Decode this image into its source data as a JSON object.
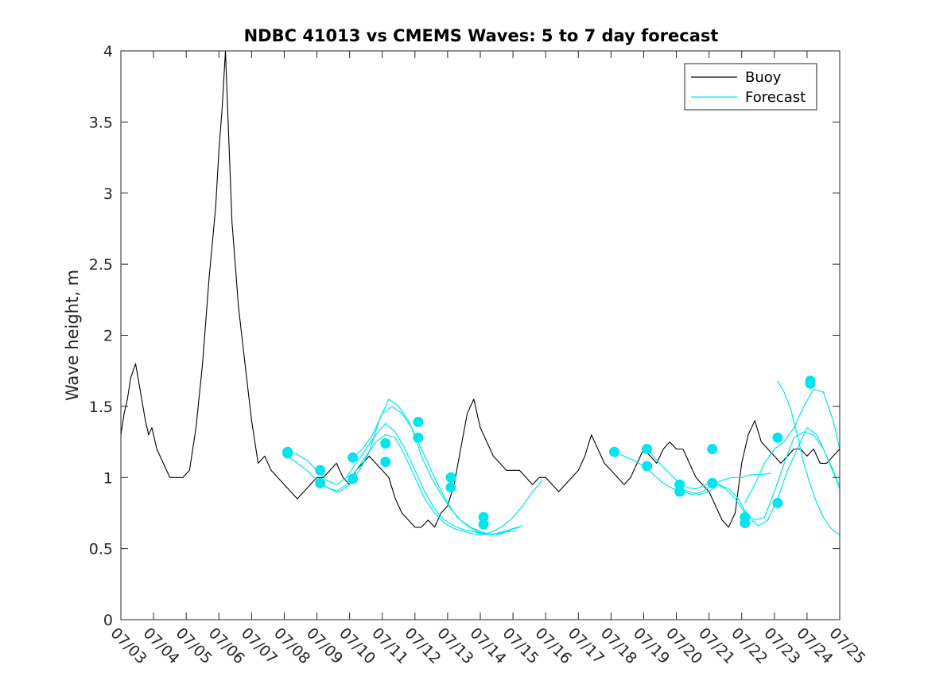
{
  "chart_data": {
    "type": "line",
    "title": "NDBC 41013 vs CMEMS Waves: 5 to 7 day forecast",
    "xlabel": "",
    "ylabel": "Wave height, m",
    "ylim": [
      0,
      4
    ],
    "yticks": [
      "0",
      "0.5",
      "1",
      "1.5",
      "2",
      "2.5",
      "3",
      "3.5",
      "4"
    ],
    "xlim": [
      "07/03",
      "07/25"
    ],
    "xticks": [
      "07/03",
      "07/04",
      "07/05",
      "07/06",
      "07/07",
      "07/08",
      "07/09",
      "07/10",
      "07/11",
      "07/12",
      "07/13",
      "07/14",
      "07/15",
      "07/16",
      "07/17",
      "07/18",
      "07/19",
      "07/20",
      "07/21",
      "07/22",
      "07/23",
      "07/24",
      "07/25"
    ],
    "grid": false,
    "legend": {
      "placement": "top-right",
      "entries": [
        "Buoy",
        "Forecast"
      ]
    },
    "colors": {
      "buoy": "#000000",
      "forecast": "#00e5ee",
      "axes": "#262626"
    },
    "series": [
      {
        "name": "Buoy",
        "x": [
          0.0,
          0.1,
          0.2,
          0.3,
          0.45,
          0.6,
          0.75,
          0.85,
          0.95,
          1.1,
          1.3,
          1.5,
          1.7,
          1.9,
          2.1,
          2.3,
          2.5,
          2.7,
          2.9,
          3.0,
          3.1,
          3.2,
          3.3,
          3.4,
          3.5,
          3.6,
          3.8,
          4.0,
          4.2,
          4.4,
          4.6,
          4.8,
          5.0,
          5.2,
          5.4,
          5.6,
          5.8,
          6.0,
          6.2,
          6.4,
          6.6,
          6.8,
          7.0,
          7.2,
          7.4,
          7.6,
          7.8,
          8.0,
          8.2,
          8.4,
          8.6,
          8.8,
          9.0,
          9.2,
          9.4,
          9.6,
          9.8,
          10.0,
          10.2,
          10.4,
          10.6,
          10.8,
          11.0,
          11.2,
          11.4,
          11.6,
          11.8,
          12.0,
          12.2,
          12.4,
          12.6,
          12.8,
          13.0,
          13.2,
          13.4,
          13.6,
          13.8,
          14.0,
          14.2,
          14.4,
          14.6,
          14.8,
          15.0,
          15.2,
          15.4,
          15.6,
          15.8,
          16.0,
          16.2,
          16.4,
          16.6,
          16.8,
          17.0,
          17.2,
          17.4,
          17.6,
          17.8,
          18.0,
          18.2,
          18.4,
          18.6,
          18.8,
          19.0,
          19.2,
          19.4,
          19.6,
          19.8,
          20.0,
          20.2,
          20.4,
          20.6,
          20.8,
          21.0,
          21.2,
          21.4,
          21.6,
          21.8,
          22.0
        ],
        "values": [
          1.3,
          1.45,
          1.55,
          1.7,
          1.8,
          1.6,
          1.4,
          1.3,
          1.35,
          1.2,
          1.1,
          1.0,
          1.0,
          1.0,
          1.05,
          1.35,
          1.8,
          2.4,
          2.9,
          3.3,
          3.6,
          4.0,
          3.4,
          2.8,
          2.5,
          2.2,
          1.8,
          1.4,
          1.1,
          1.15,
          1.05,
          1.0,
          0.95,
          0.9,
          0.85,
          0.9,
          0.95,
          1.0,
          1.0,
          1.05,
          1.1,
          1.0,
          0.95,
          1.05,
          1.1,
          1.15,
          1.1,
          1.05,
          1.0,
          0.85,
          0.75,
          0.7,
          0.65,
          0.65,
          0.7,
          0.65,
          0.75,
          0.8,
          0.95,
          1.2,
          1.45,
          1.55,
          1.35,
          1.25,
          1.15,
          1.1,
          1.05,
          1.05,
          1.05,
          1.0,
          0.95,
          1.0,
          1.0,
          0.95,
          0.9,
          0.95,
          1.0,
          1.05,
          1.15,
          1.3,
          1.2,
          1.1,
          1.05,
          1.0,
          0.95,
          1.0,
          1.1,
          1.2,
          1.15,
          1.1,
          1.2,
          1.25,
          1.2,
          1.2,
          1.1,
          1.0,
          0.95,
          0.9,
          0.8,
          0.7,
          0.65,
          0.75,
          1.1,
          1.3,
          1.4,
          1.25,
          1.2,
          1.15,
          1.1,
          1.15,
          1.2,
          1.2,
          1.15,
          1.2,
          1.1,
          1.1,
          1.15,
          1.2
        ]
      },
      {
        "name": "Forecast",
        "x": [
          5.1,
          5.4,
          5.7,
          6.0,
          6.3,
          6.6,
          6.9,
          7.2,
          7.5,
          7.8,
          8.1,
          8.4,
          8.7,
          9.0,
          9.3,
          9.6,
          9.9,
          10.2,
          10.5,
          10.8,
          11.1,
          11.4,
          11.7,
          12.0,
          12.3
        ],
        "values": [
          1.18,
          1.16,
          1.12,
          1.05,
          0.98,
          0.95,
          1.0,
          1.1,
          1.2,
          1.3,
          1.38,
          1.32,
          1.2,
          1.05,
          0.9,
          0.78,
          0.7,
          0.66,
          0.63,
          0.62,
          0.6,
          0.6,
          0.62,
          0.64,
          0.66
        ]
      },
      {
        "name": "Forecast",
        "x": [
          5.1,
          5.4,
          5.7,
          6.0,
          6.3,
          6.6,
          6.9,
          7.2,
          7.5,
          7.8,
          8.1,
          8.4,
          8.7,
          9.0,
          9.3,
          9.6,
          9.9,
          10.2,
          10.5,
          10.8,
          11.1,
          11.4,
          11.7,
          12.0,
          12.3,
          12.6,
          12.9
        ],
        "values": [
          1.15,
          1.1,
          1.05,
          0.98,
          0.93,
          0.9,
          0.95,
          1.05,
          1.15,
          1.25,
          1.3,
          1.28,
          1.15,
          1.0,
          0.85,
          0.75,
          0.68,
          0.64,
          0.62,
          0.6,
          0.6,
          0.62,
          0.66,
          0.72,
          0.8,
          0.9,
          0.98
        ]
      },
      {
        "name": "Forecast",
        "x": [
          6.1,
          6.4,
          6.7,
          7.0,
          7.3,
          7.6,
          7.9,
          8.2,
          8.5,
          8.8,
          9.1,
          9.4,
          9.7,
          10.0,
          10.3,
          10.6,
          10.9,
          11.2,
          11.5,
          11.8,
          12.1
        ],
        "values": [
          0.96,
          0.92,
          0.9,
          0.95,
          1.05,
          1.18,
          1.4,
          1.55,
          1.5,
          1.4,
          1.25,
          1.1,
          0.95,
          0.82,
          0.72,
          0.66,
          0.62,
          0.6,
          0.6,
          0.62,
          0.62
        ]
      },
      {
        "name": "Forecast",
        "x": [
          7.1,
          7.4,
          7.7,
          8.0,
          8.3,
          8.6,
          8.9,
          9.2,
          9.5,
          9.8,
          10.1,
          10.4,
          10.7,
          11.0,
          11.3,
          11.6,
          11.9,
          12.2
        ],
        "values": [
          1.14,
          1.2,
          1.3,
          1.45,
          1.5,
          1.45,
          1.35,
          1.15,
          1.0,
          0.88,
          0.78,
          0.7,
          0.65,
          0.62,
          0.6,
          0.6,
          0.63,
          0.65
        ]
      },
      {
        "name": "Forecast",
        "x": [
          15.1,
          15.4,
          15.7,
          16.0,
          16.3,
          16.6,
          16.9,
          17.2,
          17.5,
          17.8,
          18.1,
          18.4,
          18.7,
          19.0,
          19.3,
          19.6,
          19.9
        ],
        "values": [
          1.18,
          1.15,
          1.12,
          1.08,
          1.02,
          0.96,
          0.92,
          0.9,
          0.88,
          0.9,
          0.95,
          0.98,
          1.0,
          1.0,
          1.02,
          1.02,
          1.03
        ]
      },
      {
        "name": "Forecast",
        "x": [
          16.1,
          16.4,
          16.7,
          17.0,
          17.3,
          17.6,
          17.9,
          18.2,
          18.5,
          18.8,
          19.1,
          19.4,
          19.7,
          20.0,
          20.3,
          20.6,
          20.9,
          21.2,
          21.5,
          21.8,
          22.0
        ],
        "values": [
          1.2,
          1.12,
          1.05,
          0.98,
          0.93,
          0.92,
          0.95,
          0.96,
          0.92,
          0.85,
          0.75,
          0.7,
          0.72,
          0.9,
          1.1,
          1.28,
          1.32,
          1.3,
          1.2,
          1.05,
          0.92
        ]
      },
      {
        "name": "Forecast",
        "x": [
          17.1,
          17.4,
          17.7,
          18.0,
          18.3,
          18.6,
          18.9,
          19.2,
          19.5,
          19.8,
          20.1,
          20.4,
          20.7,
          21.0,
          21.3,
          21.6,
          21.9,
          22.0
        ],
        "values": [
          0.92,
          0.9,
          0.88,
          0.9,
          0.95,
          0.92,
          0.85,
          0.72,
          0.66,
          0.7,
          0.85,
          1.05,
          1.2,
          1.35,
          1.3,
          1.15,
          0.98,
          0.95
        ]
      },
      {
        "name": "Forecast",
        "x": [
          19.1,
          19.4,
          19.7,
          20.0,
          20.3,
          20.6,
          20.9,
          21.2,
          21.5,
          21.8,
          22.0
        ],
        "values": [
          0.82,
          0.95,
          1.1,
          1.2,
          1.25,
          1.35,
          1.5,
          1.62,
          1.6,
          1.4,
          1.2
        ]
      },
      {
        "name": "Forecast",
        "x": [
          20.1,
          20.3,
          20.5,
          20.7,
          20.9,
          21.1,
          21.3,
          21.5,
          21.7,
          21.9,
          22.0
        ],
        "values": [
          1.68,
          1.6,
          1.48,
          1.3,
          1.1,
          0.95,
          0.82,
          0.72,
          0.65,
          0.61,
          0.6
        ]
      }
    ],
    "markers": {
      "x": [
        5.1,
        5.1,
        6.1,
        6.1,
        7.1,
        7.1,
        8.1,
        8.1,
        9.1,
        9.1,
        10.1,
        10.1,
        11.1,
        11.1,
        15.1,
        16.1,
        16.1,
        17.1,
        17.1,
        18.1,
        18.1,
        19.1,
        19.1,
        20.1,
        20.1
      ],
      "values": [
        1.18,
        1.17,
        1.05,
        0.96,
        1.14,
        0.99,
        1.24,
        1.11,
        1.39,
        1.28,
        1.0,
        0.93,
        0.72,
        0.67,
        1.18,
        1.2,
        1.08,
        0.95,
        0.9,
        1.2,
        0.96,
        0.72,
        0.68,
        1.28,
        0.82
      ]
    },
    "extra_markers": {
      "x": [
        21.1,
        21.1
      ],
      "values": [
        1.68,
        1.66
      ]
    }
  }
}
